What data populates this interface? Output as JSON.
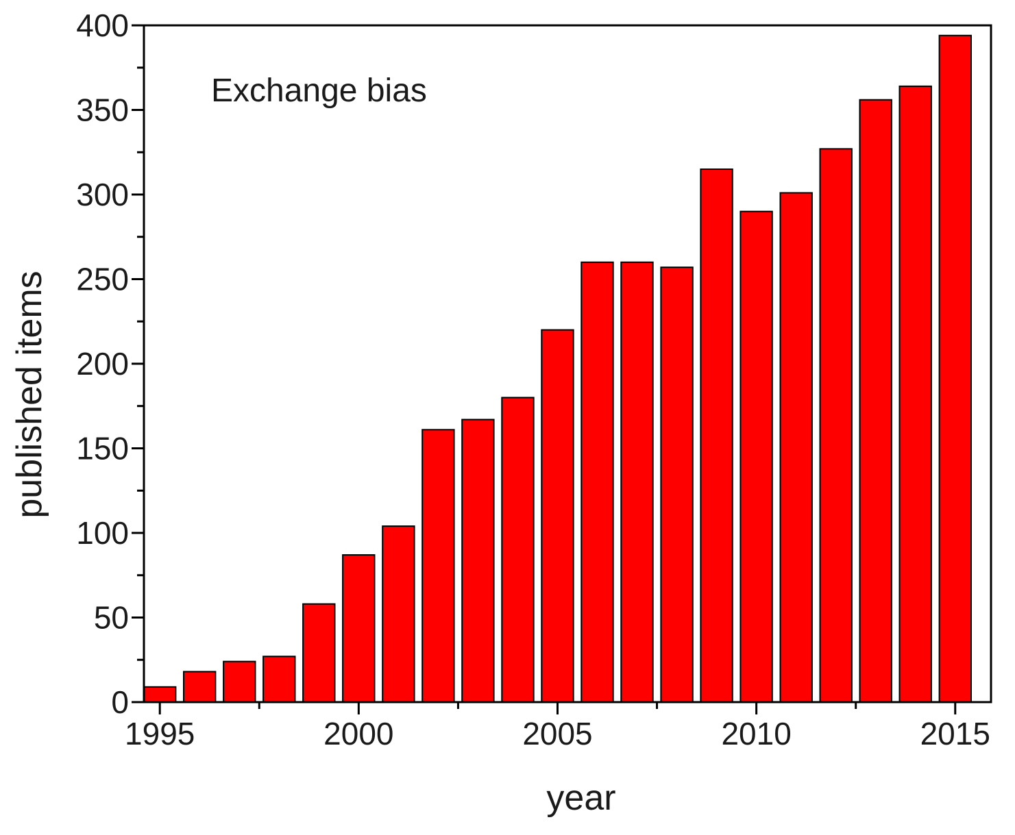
{
  "chart_data": {
    "type": "bar",
    "categories": [
      "1995",
      "1996",
      "1997",
      "1998",
      "1999",
      "2000",
      "2001",
      "2002",
      "2003",
      "2004",
      "2005",
      "2006",
      "2007",
      "2008",
      "2009",
      "2010",
      "2011",
      "2012",
      "2013",
      "2014",
      "2015"
    ],
    "values": [
      9,
      18,
      24,
      27,
      58,
      87,
      104,
      161,
      167,
      180,
      220,
      260,
      260,
      257,
      315,
      290,
      301,
      327,
      356,
      364,
      394
    ],
    "title": "",
    "annotation": "Exchange bias",
    "xlabel": "year",
    "ylabel": "published items",
    "ylim": [
      0,
      400
    ],
    "xlim": [
      1994.6,
      2015.9
    ],
    "y_ticks": [
      0,
      50,
      100,
      150,
      200,
      250,
      300,
      350,
      400
    ],
    "y_tick_labels": [
      "0",
      "50",
      "100",
      "150",
      "200",
      "250",
      "300",
      "350",
      "400"
    ],
    "x_ticks": [
      1995,
      2000,
      2005,
      2010,
      2015
    ],
    "x_tick_labels": [
      "1995",
      "2000",
      "2005",
      "2010",
      "2015"
    ],
    "grid": false,
    "bar_color": "#ff0000",
    "edge_color": "#000000"
  }
}
